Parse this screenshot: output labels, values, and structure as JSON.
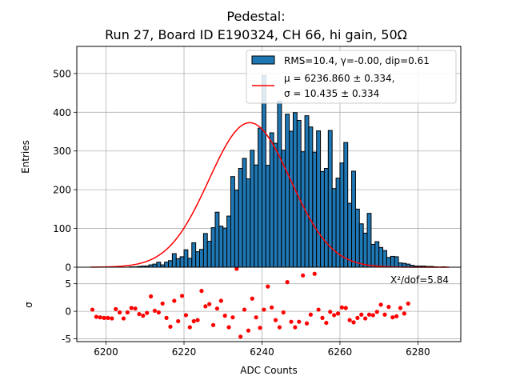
{
  "chart_data": {
    "type": "bar",
    "title_line1": "Pedestal:",
    "title_line2": "Run 27, Board ID E190324, CH 66, hi gain, 50Ω",
    "top": {
      "ylabel": "Entries",
      "ylim": [
        0,
        570
      ],
      "yticks": [
        0,
        100,
        200,
        300,
        400,
        500
      ],
      "bin_width": 1,
      "bin_start": 6196,
      "counts": [
        0,
        0,
        0,
        0,
        0,
        0,
        0,
        0,
        0,
        0,
        1,
        1,
        2,
        3,
        3,
        6,
        8,
        13,
        6,
        13,
        17,
        35,
        22,
        27,
        45,
        23,
        63,
        40,
        46,
        87,
        67,
        102,
        142,
        106,
        101,
        132,
        234,
        199,
        255,
        281,
        228,
        302,
        264,
        359,
        495,
        263,
        347,
        320,
        429,
        302,
        395,
        351,
        399,
        379,
        298,
        391,
        362,
        297,
        352,
        247,
        255,
        353,
        203,
        230,
        269,
        322,
        165,
        248,
        150,
        112,
        88,
        139,
        59,
        66,
        51,
        43,
        25,
        28,
        27,
        11,
        10,
        8,
        5,
        3,
        3,
        3,
        2,
        2,
        1,
        0,
        1,
        0
      ],
      "legend_bar": "RMS=10.4, γ=-0.00, dip=0.61",
      "legend_line1": "μ = 6236.860 ± 0.334,",
      "legend_line2": "σ = 10.435 ± 0.334",
      "fit_mu": 6236.86,
      "fit_sigma": 10.435,
      "fit_amp": 373,
      "fit_color": "#ff0000",
      "bar_color": "#1f77b4"
    },
    "bottom": {
      "ylabel": "σ",
      "ylim": [
        -5.5,
        8
      ],
      "yticks": [
        -5,
        0,
        5
      ],
      "annotation": "X²/dof=5.84",
      "residuals": [
        [
          6196.5,
          0.3
        ],
        [
          6197.5,
          -1
        ],
        [
          6198.5,
          -1.1
        ],
        [
          6199.5,
          -1.2
        ],
        [
          6200.5,
          -1.2
        ],
        [
          6201.5,
          -1.3
        ],
        [
          6202.5,
          0.4
        ],
        [
          6203.5,
          -0.2
        ],
        [
          6204.5,
          -1.3
        ],
        [
          6205.5,
          -0.2
        ],
        [
          6206.5,
          0.6
        ],
        [
          6207.5,
          0.5
        ],
        [
          6208.5,
          -0.5
        ],
        [
          6209.5,
          -0.8
        ],
        [
          6210.5,
          -0.3
        ],
        [
          6211.5,
          2.7
        ],
        [
          6212.5,
          0.1
        ],
        [
          6213.5,
          -0.2
        ],
        [
          6214.5,
          1.4
        ],
        [
          6215.5,
          -1.2
        ],
        [
          6216.5,
          -2.8
        ],
        [
          6217.5,
          1.9
        ],
        [
          6218.5,
          -1.8
        ],
        [
          6219.5,
          2.8
        ],
        [
          6220.5,
          -0.7
        ],
        [
          6221.5,
          -2.9
        ],
        [
          6222.5,
          -1.8
        ],
        [
          6223.5,
          -1.6
        ],
        [
          6224.5,
          3.7
        ],
        [
          6225.5,
          0.9
        ],
        [
          6226.5,
          1.3
        ],
        [
          6227.5,
          -2.5
        ],
        [
          6228.5,
          0.5
        ],
        [
          6229.5,
          1.9
        ],
        [
          6230.5,
          -0.8
        ],
        [
          6231.5,
          -2.9
        ],
        [
          6232.5,
          -1.1
        ],
        [
          6233.5,
          7.7
        ],
        [
          6234.5,
          -4.6
        ],
        [
          6235.5,
          0.3
        ],
        [
          6236.5,
          -3.5
        ],
        [
          6237.5,
          2.3
        ],
        [
          6238.5,
          -1.1
        ],
        [
          6239.5,
          -3
        ],
        [
          6240.5,
          0.3
        ],
        [
          6241.5,
          4.5
        ],
        [
          6242.5,
          0.7
        ],
        [
          6243.5,
          -1.6
        ],
        [
          6244.5,
          -2.9
        ],
        [
          6245.5,
          -0.2
        ],
        [
          6246.5,
          5.3
        ],
        [
          6247.5,
          -1.9
        ],
        [
          6248.5,
          -2.9
        ],
        [
          6249.5,
          -1.9
        ],
        [
          6250.5,
          6.5
        ],
        [
          6251.5,
          -2.2
        ],
        [
          6252.5,
          -0.6
        ],
        [
          6253.5,
          6.8
        ],
        [
          6254.5,
          0.3
        ],
        [
          6255.5,
          -1.2
        ],
        [
          6256.5,
          -2.1
        ],
        [
          6257.5,
          -0.1
        ],
        [
          6258.5,
          -0.7
        ],
        [
          6259.5,
          -0.4
        ],
        [
          6260.5,
          0.7
        ],
        [
          6261.5,
          0.6
        ],
        [
          6262.5,
          -1.6
        ],
        [
          6263.5,
          -2
        ],
        [
          6264.5,
          -1.2
        ],
        [
          6265.5,
          -0.6
        ],
        [
          6266.5,
          -1.3
        ],
        [
          6267.5,
          -0.6
        ],
        [
          6268.5,
          -0.7
        ],
        [
          6269.5,
          -0.1
        ],
        [
          6270.5,
          1.2
        ],
        [
          6271.5,
          -0.6
        ],
        [
          6272.5,
          0.8
        ],
        [
          6273.5,
          -1.1
        ],
        [
          6274.5,
          -0.9
        ],
        [
          6275.5,
          0.6
        ],
        [
          6276.5,
          -0.4
        ],
        [
          6277.5,
          1.4
        ]
      ]
    },
    "xlabel": "ADC Counts",
    "xlim": [
      6192.5,
      6291
    ],
    "xticks": [
      6200,
      6220,
      6240,
      6260,
      6280
    ],
    "grid": true
  }
}
